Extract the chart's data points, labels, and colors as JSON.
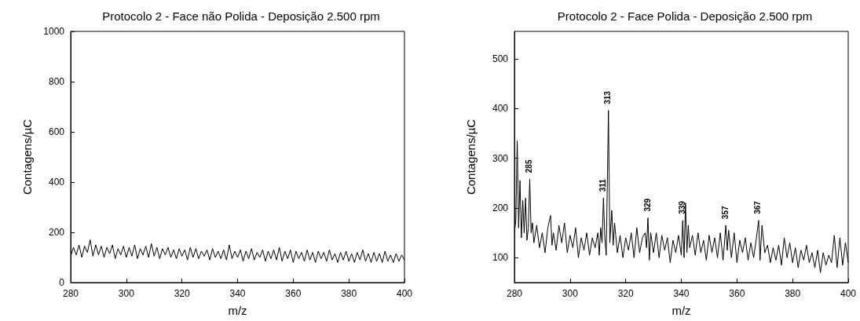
{
  "chart_data": [
    {
      "type": "line",
      "title": "Protocolo 2 - Face não Polida - Deposição 2.500 rpm",
      "xlabel": "m/z",
      "ylabel": "Contagens/µC",
      "xlim": [
        280,
        400
      ],
      "xticks": [
        280,
        300,
        320,
        340,
        360,
        380,
        400
      ],
      "ylim": [
        0,
        1000
      ],
      "yticks": [
        0,
        200,
        400,
        600,
        800,
        1000
      ],
      "marker": "none",
      "line_style": "solid",
      "series": [
        {
          "color": "#000000",
          "x": [
            280,
            281,
            282,
            283,
            284,
            285,
            286,
            287,
            288,
            289,
            290,
            291,
            292,
            293,
            294,
            295,
            296,
            297,
            298,
            299,
            300,
            301,
            302,
            303,
            304,
            305,
            306,
            307,
            308,
            309,
            310,
            311,
            312,
            313,
            314,
            315,
            316,
            317,
            318,
            319,
            320,
            321,
            322,
            323,
            324,
            325,
            326,
            327,
            328,
            329,
            330,
            331,
            332,
            333,
            334,
            335,
            336,
            337,
            338,
            339,
            340,
            341,
            342,
            343,
            344,
            345,
            346,
            347,
            348,
            349,
            350,
            351,
            352,
            353,
            354,
            355,
            356,
            357,
            358,
            359,
            360,
            361,
            362,
            363,
            364,
            365,
            366,
            367,
            368,
            369,
            370,
            371,
            372,
            373,
            374,
            375,
            376,
            377,
            378,
            379,
            380,
            381,
            382,
            383,
            384,
            385,
            386,
            387,
            388,
            389,
            390,
            391,
            392,
            393,
            394,
            395,
            396,
            397,
            398,
            399,
            400
          ],
          "values": [
            105,
            140,
            110,
            150,
            100,
            145,
            120,
            170,
            105,
            150,
            110,
            145,
            100,
            140,
            115,
            150,
            95,
            135,
            110,
            145,
            100,
            140,
            105,
            150,
            95,
            135,
            110,
            145,
            100,
            155,
            105,
            140,
            95,
            135,
            110,
            140,
            100,
            130,
            95,
            135,
            105,
            130,
            90,
            140,
            100,
            135,
            95,
            125,
            105,
            130,
            90,
            135,
            100,
            125,
            95,
            130,
            90,
            150,
            95,
            125,
            100,
            130,
            85,
            125,
            95,
            135,
            90,
            120,
            100,
            130,
            85,
            125,
            95,
            130,
            90,
            140,
            85,
            125,
            95,
            130,
            80,
            125,
            95,
            120,
            85,
            130,
            90,
            120,
            80,
            125,
            95,
            120,
            85,
            130,
            90,
            115,
            80,
            120,
            90,
            125,
            85,
            115,
            80,
            120,
            90,
            130,
            85,
            115,
            80,
            120,
            85,
            115,
            80,
            125,
            85,
            110,
            80,
            115,
            85,
            110,
            90
          ]
        }
      ]
    },
    {
      "type": "line",
      "title": "Protocolo 2 - Face Polida - Deposição 2.500 rpm",
      "xlabel": "m/z",
      "ylabel": "Contagens/µC",
      "xlim": [
        280,
        400
      ],
      "xticks": [
        280,
        300,
        320,
        340,
        360,
        380,
        400
      ],
      "ylim": [
        50,
        555
      ],
      "yticks": [
        100,
        200,
        300,
        400,
        500
      ],
      "marker": "none",
      "line_style": "solid",
      "annotations": [
        {
          "text": "285",
          "x": 285.5,
          "y": 258
        },
        {
          "text": "313",
          "x": 313.8,
          "y": 396
        },
        {
          "text": "311",
          "x": 312,
          "y": 220
        },
        {
          "text": "329",
          "x": 328,
          "y": 180
        },
        {
          "text": "339",
          "x": 340.5,
          "y": 175
        },
        {
          "text": "357",
          "x": 356,
          "y": 165
        },
        {
          "text": "367",
          "x": 367.8,
          "y": 175
        }
      ],
      "series": [
        {
          "color": "#000000",
          "x": [
            280,
            280.5,
            281,
            281.5,
            282,
            282.5,
            283,
            283.5,
            284,
            284.5,
            285,
            285.5,
            286,
            286.5,
            287,
            288,
            289,
            290,
            291,
            292,
            293,
            293.5,
            294,
            295,
            296,
            297,
            298,
            299,
            300,
            301,
            302,
            303,
            304,
            305,
            306,
            307,
            308,
            309,
            310,
            310.5,
            311,
            311.5,
            312,
            312.5,
            313,
            313.8,
            314.3,
            315,
            315.5,
            316,
            317,
            318,
            319,
            320,
            321,
            322,
            323,
            324,
            325,
            326,
            327,
            327.5,
            328,
            328.5,
            329,
            330,
            331,
            332,
            333,
            334,
            335,
            336,
            337,
            338,
            339,
            340,
            340.5,
            341,
            341.5,
            342,
            342.5,
            343,
            344,
            345,
            346,
            347,
            348,
            349,
            350,
            351,
            352,
            353,
            354,
            355,
            356,
            356.5,
            357,
            358,
            359,
            360,
            361,
            362,
            363,
            364,
            365,
            366,
            367,
            367.8,
            368.3,
            369,
            370,
            371,
            372,
            373,
            374,
            375,
            376,
            377,
            378,
            379,
            380,
            381,
            382,
            383,
            384,
            385,
            386,
            387,
            388,
            389,
            390,
            391,
            392,
            393,
            394,
            395,
            396,
            397,
            398,
            399,
            400
          ],
          "values": [
            150,
            175,
            335,
            160,
            255,
            140,
            215,
            150,
            220,
            135,
            160,
            258,
            150,
            170,
            130,
            165,
            120,
            150,
            110,
            160,
            185,
            125,
            150,
            115,
            165,
            130,
            170,
            110,
            145,
            120,
            160,
            100,
            140,
            115,
            150,
            105,
            140,
            120,
            150,
            105,
            160,
            130,
            220,
            140,
            105,
            396,
            130,
            195,
            125,
            170,
            110,
            145,
            100,
            140,
            115,
            150,
            100,
            160,
            110,
            140,
            150,
            120,
            180,
            95,
            150,
            110,
            150,
            100,
            145,
            115,
            140,
            90,
            135,
            110,
            145,
            105,
            175,
            100,
            210,
            110,
            165,
            120,
            145,
            105,
            150,
            110,
            135,
            95,
            145,
            110,
            140,
            100,
            150,
            95,
            165,
            115,
            155,
            100,
            150,
            90,
            135,
            110,
            140,
            95,
            130,
            100,
            140,
            175,
            95,
            165,
            110,
            125,
            90,
            120,
            95,
            125,
            85,
            140,
            100,
            130,
            90,
            120,
            80,
            115,
            95,
            125,
            90,
            110,
            80,
            115,
            70,
            110,
            85,
            105,
            90,
            145,
            80,
            140,
            85,
            130,
            90
          ]
        }
      ]
    }
  ]
}
